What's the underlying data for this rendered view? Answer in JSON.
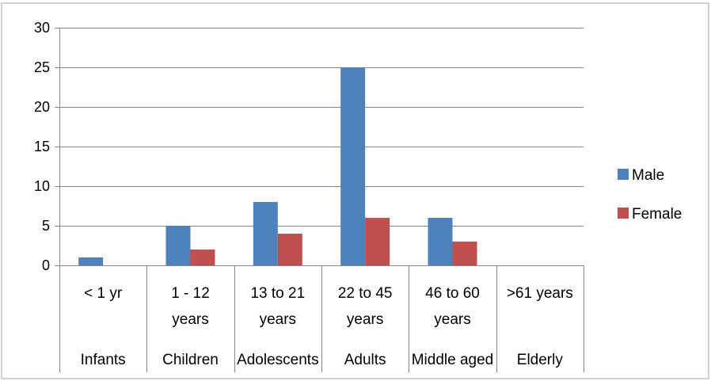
{
  "chart_data": {
    "type": "bar",
    "y_ticks": [
      "0",
      "5",
      "10",
      "15",
      "20",
      "25",
      "30"
    ],
    "ylim": [
      0,
      30
    ],
    "grid": true,
    "legend_position": "right",
    "categories": [
      {
        "range_lines": [
          "< 1 yr"
        ],
        "group": "Infants"
      },
      {
        "range_lines": [
          "1 - 12",
          "years"
        ],
        "group": "Children"
      },
      {
        "range_lines": [
          "13 to 21",
          "years"
        ],
        "group": "Adolescents"
      },
      {
        "range_lines": [
          "22 to 45",
          "years"
        ],
        "group": "Adults"
      },
      {
        "range_lines": [
          "46 to 60",
          "years"
        ],
        "group": "Middle aged"
      },
      {
        "range_lines": [
          ">61 years"
        ],
        "group": "Elderly"
      }
    ],
    "series": [
      {
        "name": "Male",
        "color": "#4f81bd",
        "values": [
          1,
          5,
          8,
          25,
          6,
          0
        ]
      },
      {
        "name": "Female",
        "color": "#c0504d",
        "values": [
          0,
          2,
          4,
          6,
          3,
          0
        ]
      }
    ]
  }
}
